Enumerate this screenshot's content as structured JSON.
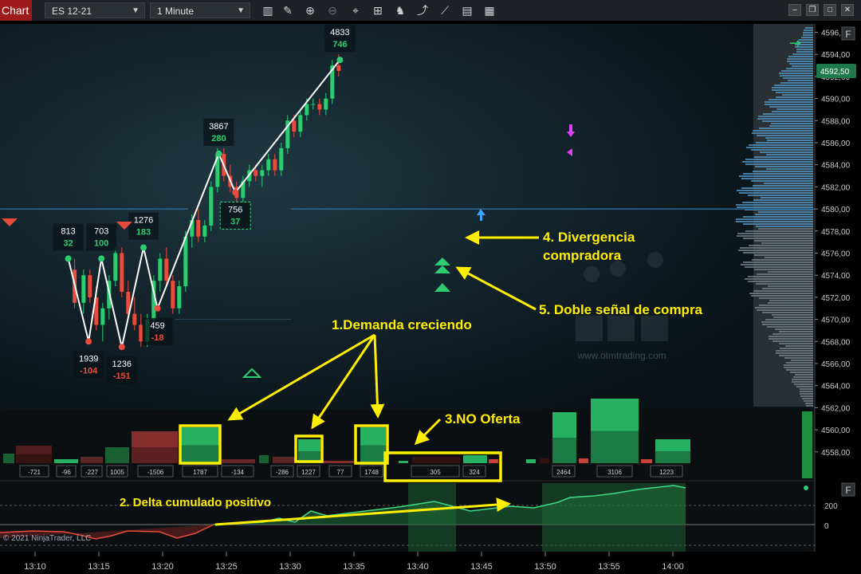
{
  "toolbar": {
    "chart_tab": "Chart",
    "instrument": "ES 12-21",
    "interval": "1 Minute",
    "icons": [
      "bar-type-icon",
      "pencil-icon",
      "zoom-in-icon",
      "zoom-out-icon",
      "crosshair-icon",
      "data-box-icon",
      "strategy-icon",
      "indicator-icon",
      "properties-icon",
      "template-icon"
    ],
    "window_buttons": [
      "minimize",
      "maximize",
      "close"
    ]
  },
  "colors": {
    "background": "#0c1418",
    "up": "#2ecc71",
    "down": "#e74c3c",
    "zigzag": "#ffffff",
    "annotation": "#ffee00",
    "profile": "#4f8fb8"
  },
  "watermark": {
    "brand": "OTM",
    "url": "www.otmtrading.com"
  },
  "copyright": "© 2021 NinjaTrader, LLC",
  "price_panel_label": "F",
  "delta_panel_label": "F",
  "chart_data": {
    "type": "candlestick",
    "instrument": "ES 12-21",
    "interval": "1 Minute",
    "x_ticks": [
      "13:10",
      "13:15",
      "13:20",
      "13:25",
      "13:30",
      "13:35",
      "13:40",
      "13:45",
      "13:50",
      "13:55",
      "14:00"
    ],
    "y_ticks": [
      "4596,00",
      "4594,00",
      "4592,00",
      "4590,00",
      "4588,00",
      "4586,00",
      "4584,00",
      "4582,00",
      "4580,00",
      "4578,00",
      "4576,00",
      "4574,00",
      "4572,00",
      "4570,00",
      "4568,00",
      "4566,00",
      "4564,00",
      "4562,00",
      "4560,00",
      "4558,00"
    ],
    "ylim": [
      4557,
      4597
    ],
    "last_price": "4592,50",
    "last_price_value": 4592.5,
    "candles": [
      {
        "t": 13.1,
        "o": 4574.5,
        "h": 4575.5,
        "l": 4571,
        "c": 4571.5
      },
      {
        "t": 13.8,
        "o": 4571.5,
        "h": 4574.5,
        "l": 4570.5,
        "c": 4574
      },
      {
        "t": 14.3,
        "o": 4574,
        "h": 4574.5,
        "l": 4571.5,
        "c": 4572
      },
      {
        "t": 14.8,
        "o": 4572,
        "h": 4573,
        "l": 4569,
        "c": 4569.5
      },
      {
        "t": 15.3,
        "o": 4569.5,
        "h": 4571.5,
        "l": 4568,
        "c": 4571
      },
      {
        "t": 15.8,
        "o": 4571,
        "h": 4574,
        "l": 4570,
        "c": 4573.5
      },
      {
        "t": 16.3,
        "o": 4573.5,
        "h": 4576.5,
        "l": 4573,
        "c": 4576
      },
      {
        "t": 16.8,
        "o": 4576,
        "h": 4576.5,
        "l": 4572,
        "c": 4572.5
      },
      {
        "t": 17.3,
        "o": 4572.5,
        "h": 4573.5,
        "l": 4570,
        "c": 4570.5
      },
      {
        "t": 17.8,
        "o": 4570.5,
        "h": 4572,
        "l": 4569,
        "c": 4569.5
      },
      {
        "t": 18.3,
        "o": 4569.5,
        "h": 4570.5,
        "l": 4567.5,
        "c": 4568
      },
      {
        "t": 18.8,
        "o": 4568,
        "h": 4570.5,
        "l": 4567.5,
        "c": 4570
      },
      {
        "t": 19.3,
        "o": 4570,
        "h": 4574,
        "l": 4569.5,
        "c": 4573.5
      },
      {
        "t": 19.8,
        "o": 4573.5,
        "h": 4576,
        "l": 4572.5,
        "c": 4575.5
      },
      {
        "t": 20.3,
        "o": 4575.5,
        "h": 4576.5,
        "l": 4573,
        "c": 4573.5
      },
      {
        "t": 20.8,
        "o": 4573.5,
        "h": 4574,
        "l": 4570.5,
        "c": 4571
      },
      {
        "t": 21.3,
        "o": 4571,
        "h": 4573.5,
        "l": 4570.5,
        "c": 4573
      },
      {
        "t": 21.8,
        "o": 4573,
        "h": 4578,
        "l": 4572.5,
        "c": 4577.5
      },
      {
        "t": 22.3,
        "o": 4577.5,
        "h": 4579.5,
        "l": 4576.5,
        "c": 4579
      },
      {
        "t": 22.8,
        "o": 4579,
        "h": 4580,
        "l": 4577,
        "c": 4577.5
      },
      {
        "t": 23.3,
        "o": 4577.5,
        "h": 4579,
        "l": 4577,
        "c": 4578.5
      },
      {
        "t": 23.8,
        "o": 4578.5,
        "h": 4582.5,
        "l": 4578,
        "c": 4582
      },
      {
        "t": 24.3,
        "o": 4582,
        "h": 4585.5,
        "l": 4581.5,
        "c": 4585
      },
      {
        "t": 24.8,
        "o": 4585,
        "h": 4585.5,
        "l": 4582.5,
        "c": 4583
      },
      {
        "t": 25.3,
        "o": 4583,
        "h": 4584,
        "l": 4581.5,
        "c": 4582
      },
      {
        "t": 25.8,
        "o": 4582,
        "h": 4582.5,
        "l": 4580.5,
        "c": 4581
      },
      {
        "t": 26.3,
        "o": 4581,
        "h": 4583,
        "l": 4580.5,
        "c": 4582.5
      },
      {
        "t": 26.8,
        "o": 4582.5,
        "h": 4584,
        "l": 4582,
        "c": 4583.5
      },
      {
        "t": 27.3,
        "o": 4583.5,
        "h": 4584,
        "l": 4582.5,
        "c": 4583
      },
      {
        "t": 27.8,
        "o": 4583,
        "h": 4584,
        "l": 4582,
        "c": 4583.5
      },
      {
        "t": 28.3,
        "o": 4583.5,
        "h": 4585,
        "l": 4583,
        "c": 4584.5
      },
      {
        "t": 28.8,
        "o": 4584.5,
        "h": 4585,
        "l": 4583,
        "c": 4583.5
      },
      {
        "t": 29.3,
        "o": 4583.5,
        "h": 4586,
        "l": 4583,
        "c": 4585.5
      },
      {
        "t": 29.8,
        "o": 4585.5,
        "h": 4588.5,
        "l": 4585,
        "c": 4588
      },
      {
        "t": 30.3,
        "o": 4588,
        "h": 4588.5,
        "l": 4586.5,
        "c": 4587
      },
      {
        "t": 30.8,
        "o": 4587,
        "h": 4589,
        "l": 4586.5,
        "c": 4588.5
      },
      {
        "t": 31.3,
        "o": 4588.5,
        "h": 4590,
        "l": 4588,
        "c": 4589.5
      },
      {
        "t": 31.8,
        "o": 4589.5,
        "h": 4590,
        "l": 4589,
        "c": 4589.5
      },
      {
        "t": 32.3,
        "o": 4589.5,
        "h": 4590,
        "l": 4588.5,
        "c": 4589
      },
      {
        "t": 32.8,
        "o": 4589,
        "h": 4590.5,
        "l": 4588.5,
        "c": 4590
      },
      {
        "t": 33.3,
        "o": 4590,
        "h": 4593.5,
        "l": 4589.5,
        "c": 4593
      },
      {
        "t": 33.8,
        "o": 4593,
        "h": 4594,
        "l": 4592,
        "c": 4592.5
      }
    ],
    "swing_points": [
      {
        "t": 12.6,
        "p": 4575.5,
        "vol": "813",
        "delta": "32",
        "dir": "up"
      },
      {
        "t": 14.2,
        "p": 4568,
        "vol": "1939",
        "delta": "-104",
        "dir": "down"
      },
      {
        "t": 15.2,
        "p": 4575.5,
        "vol": "703",
        "delta": "100",
        "dir": "up"
      },
      {
        "t": 16.8,
        "p": 4567.5,
        "vol": "1236",
        "delta": "-151",
        "dir": "down"
      },
      {
        "t": 18.5,
        "p": 4576.5,
        "vol": "1276",
        "delta": "183",
        "dir": "up"
      },
      {
        "t": 19.6,
        "p": 4571,
        "vol": "459",
        "delta": "-18",
        "dir": "down"
      },
      {
        "t": 24.4,
        "p": 4585,
        "vol": "3867",
        "delta": "280",
        "dir": "up"
      },
      {
        "t": 25.7,
        "p": 4581.5,
        "vol": "756",
        "delta": "37",
        "dir": "down"
      },
      {
        "t": 33.9,
        "p": 4593.5,
        "vol": "4833",
        "delta": "746",
        "dir": "up"
      }
    ],
    "delta_bars": [
      "-721",
      "-96",
      "-227",
      "1005",
      "-1506",
      "1787",
      "-134",
      "-286",
      "1227",
      "77",
      "1748",
      "305",
      "324",
      "2464",
      "3106",
      "1223"
    ],
    "cum_delta_ticks": [
      "200",
      "0"
    ],
    "annotations": [
      "1.Demanda creciendo",
      "2. Delta cumulado positivo",
      "3.NO Oferta",
      "4. Divergencia",
      "compradora",
      "5. Doble señal de compra"
    ]
  }
}
